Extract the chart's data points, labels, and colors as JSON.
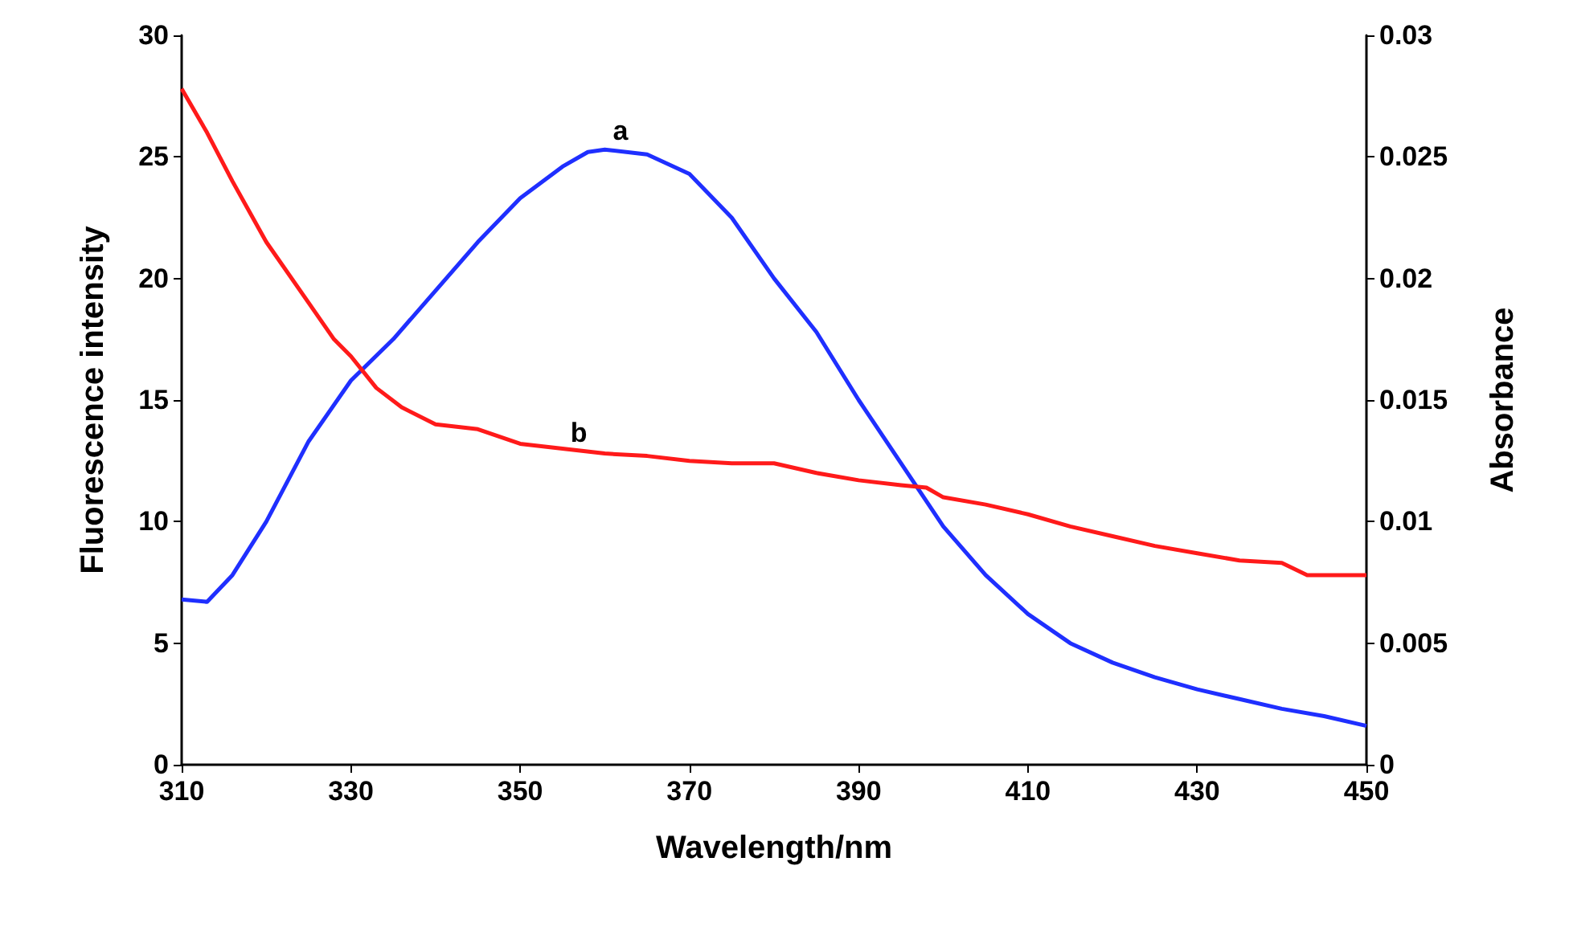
{
  "chart_data": {
    "type": "line",
    "xlabel": "Wavelength/nm",
    "ylabel": "Fluorescence intensity",
    "y2label": "Absorbance",
    "xlim": [
      310,
      450
    ],
    "xticks": [
      310,
      330,
      350,
      370,
      390,
      410,
      430,
      450
    ],
    "ylim": [
      0,
      30
    ],
    "yticks": [
      0,
      5,
      10,
      15,
      20,
      25,
      30
    ],
    "y2lim": [
      0,
      0.03
    ],
    "y2ticks": [
      0,
      0.005,
      0.01,
      0.015,
      0.02,
      0.025,
      0.03
    ],
    "annotations": [
      "a",
      "b"
    ],
    "series": [
      {
        "color": "#1f2fff",
        "x": [
          310,
          313,
          316,
          320,
          325,
          330,
          335,
          340,
          345,
          350,
          355,
          358,
          360,
          365,
          370,
          375,
          380,
          385,
          390,
          395,
          400,
          405,
          410,
          415,
          420,
          425,
          430,
          435,
          440,
          445,
          450
        ],
        "values": [
          6.8,
          6.7,
          7.8,
          10,
          13.3,
          15.8,
          17.5,
          19.5,
          21.5,
          23.3,
          24.6,
          25.2,
          25.3,
          25.1,
          24.3,
          22.5,
          20,
          17.8,
          15,
          12.4,
          9.8,
          7.8,
          6.2,
          5,
          4.2,
          3.6,
          3.1,
          2.7,
          2.3,
          2,
          1.6
        ]
      },
      {
        "color": "#ff1a1a",
        "axis": "y2",
        "x": [
          310,
          313,
          316,
          320,
          325,
          328,
          330,
          333,
          336,
          340,
          345,
          350,
          355,
          360,
          365,
          370,
          375,
          380,
          385,
          390,
          395,
          398,
          400,
          405,
          410,
          415,
          420,
          425,
          430,
          435,
          440,
          443,
          447,
          450
        ],
        "values": [
          0.0278,
          0.026,
          0.024,
          0.0215,
          0.019,
          0.0175,
          0.0168,
          0.0155,
          0.0147,
          0.014,
          0.0138,
          0.0132,
          0.013,
          0.0128,
          0.0127,
          0.0125,
          0.0124,
          0.0124,
          0.012,
          0.0117,
          0.0115,
          0.0114,
          0.011,
          0.0107,
          0.0103,
          0.0098,
          0.0094,
          0.009,
          0.0087,
          0.0084,
          0.0083,
          0.0078,
          0.0078,
          0.0078
        ]
      }
    ]
  }
}
